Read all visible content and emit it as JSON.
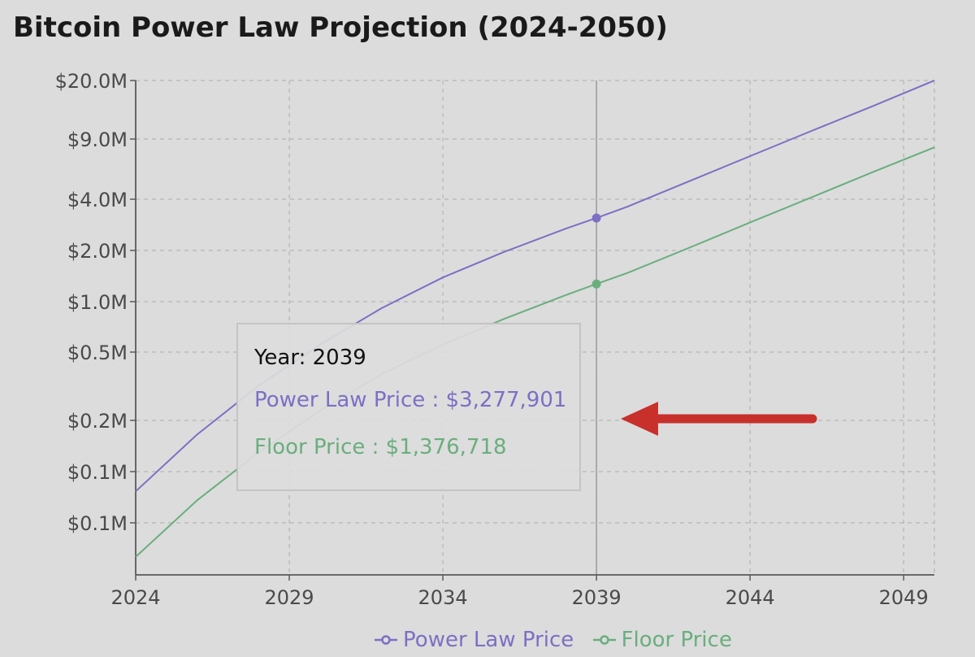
{
  "title": "Bitcoin Power Law Projection (2024-2050)",
  "colors": {
    "power_law": "#7b70c4",
    "floor": "#6aae7e",
    "grid": "#b5b5b5",
    "axis": "#5a5a5a",
    "tick_text": "#4a4a4a",
    "arrow": "#c8302c",
    "background": "#dcdcdc"
  },
  "tooltip": {
    "year_text": "Year: 2039",
    "power_label": "Power Law Price",
    "power_value": "$3,277,901",
    "floor_label": "Floor Price",
    "floor_value": "$1,376,718"
  },
  "chart_data": {
    "type": "line",
    "title": "Bitcoin Power Law Projection (2024-2050)",
    "xlabel": "",
    "ylabel": "",
    "xlim": [
      2024,
      2050
    ],
    "x_ticks": [
      2024,
      2029,
      2034,
      2039,
      2044,
      2049
    ],
    "y_ticks": [
      {
        "label": "$20.0M"
      },
      {
        "label": "$9.0M"
      },
      {
        "label": "$4.0M"
      },
      {
        "label": "$2.0M"
      },
      {
        "label": "$1.0M"
      },
      {
        "label": "$0.5M"
      },
      {
        "label": "$0.2M"
      },
      {
        "label": "$0.1M"
      },
      {
        "label": "$0.1M"
      }
    ],
    "y_scale": "log",
    "grid": true,
    "legend_position": "bottom",
    "hover_year": 2039,
    "series": [
      {
        "name": "Power Law Price",
        "x": [
          2024,
          2026,
          2028,
          2030,
          2032,
          2034,
          2036,
          2038,
          2039,
          2040,
          2042,
          2044,
          2046,
          2048,
          2050
        ],
        "y": [
          90000,
          190000,
          360000,
          620000,
          1000000,
          1500000,
          2100000,
          2850000,
          3277901,
          3800000,
          5300000,
          7400000,
          10300000,
          14300000,
          20000000
        ]
      },
      {
        "name": "Floor Price",
        "x": [
          2024,
          2026,
          2028,
          2030,
          2032,
          2034,
          2036,
          2038,
          2039,
          2040,
          2042,
          2044,
          2046,
          2048,
          2050
        ],
        "y": [
          38000,
          80000,
          150000,
          260000,
          420000,
          620000,
          870000,
          1190000,
          1376718,
          1590000,
          2210000,
          3090000,
          4300000,
          6000000,
          8300000
        ]
      }
    ]
  }
}
